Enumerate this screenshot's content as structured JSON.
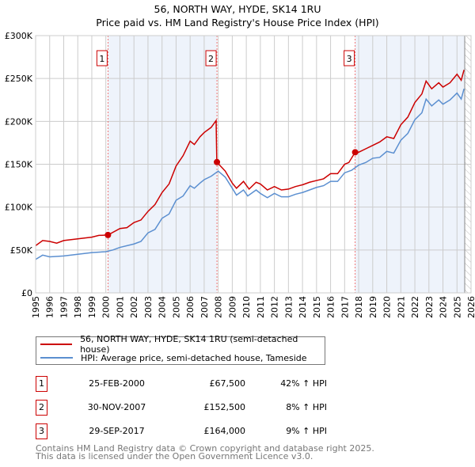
{
  "chart_data": {
    "type": "line",
    "title": "56, NORTH WAY, HYDE, SK14 1RU",
    "subtitle": "Price paid vs. HM Land Registry's House Price Index (HPI)",
    "xlim": [
      1995,
      2026
    ],
    "ylim": [
      0,
      300000
    ],
    "x_ticks": [
      "1995",
      "1996",
      "1997",
      "1998",
      "1999",
      "2000",
      "2001",
      "2002",
      "2003",
      "2004",
      "2005",
      "2006",
      "2007",
      "2008",
      "2009",
      "2010",
      "2011",
      "2012",
      "2013",
      "2014",
      "2015",
      "2016",
      "2017",
      "2018",
      "2019",
      "2020",
      "2021",
      "2022",
      "2023",
      "2024",
      "2025",
      "2026"
    ],
    "y_ticks": [
      {
        "v": 0,
        "label": "£0"
      },
      {
        "v": 50000,
        "label": "£50K"
      },
      {
        "v": 100000,
        "label": "£100K"
      },
      {
        "v": 150000,
        "label": "£150K"
      },
      {
        "v": 200000,
        "label": "£200K"
      },
      {
        "v": 250000,
        "label": "£250K"
      },
      {
        "v": 300000,
        "label": "£300K"
      }
    ],
    "grid": true,
    "colors": {
      "property": "#cc0000",
      "hpi": "#5b8fd0",
      "shade": "#eef3fb"
    },
    "series": [
      {
        "name": "56, NORTH WAY, HYDE, SK14 1RU (semi-detached house)",
        "color": "#cc0000",
        "points": [
          [
            1995,
            55
          ],
          [
            1995.5,
            61
          ],
          [
            1996,
            60
          ],
          [
            1996.5,
            58
          ],
          [
            1997,
            61
          ],
          [
            1998,
            63
          ],
          [
            1999,
            65
          ],
          [
            1999.5,
            67
          ],
          [
            2000.15,
            67.5
          ],
          [
            2001,
            75
          ],
          [
            2001.5,
            76
          ],
          [
            2002,
            82
          ],
          [
            2002.5,
            85
          ],
          [
            2003,
            95
          ],
          [
            2003.5,
            103
          ],
          [
            2004,
            117
          ],
          [
            2004.5,
            127
          ],
          [
            2005,
            148
          ],
          [
            2005.5,
            160
          ],
          [
            2006,
            177
          ],
          [
            2006.3,
            173
          ],
          [
            2006.7,
            182
          ],
          [
            2007,
            187
          ],
          [
            2007.5,
            193
          ],
          [
            2007.85,
            201
          ],
          [
            2007.9,
            152.5
          ],
          [
            2008.5,
            142
          ],
          [
            2009,
            128
          ],
          [
            2009.3,
            122
          ],
          [
            2009.8,
            130
          ],
          [
            2010.2,
            121
          ],
          [
            2010.7,
            129
          ],
          [
            2011,
            127
          ],
          [
            2011.5,
            120
          ],
          [
            2012,
            124
          ],
          [
            2012.5,
            120
          ],
          [
            2013,
            121
          ],
          [
            2013.5,
            124
          ],
          [
            2014,
            126
          ],
          [
            2014.5,
            129
          ],
          [
            2015,
            131
          ],
          [
            2015.5,
            133
          ],
          [
            2016,
            139
          ],
          [
            2016.5,
            139
          ],
          [
            2017,
            150
          ],
          [
            2017.3,
            152
          ],
          [
            2017.75,
            164
          ],
          [
            2018,
            164
          ],
          [
            2018.5,
            168
          ],
          [
            2019,
            172
          ],
          [
            2019.5,
            176
          ],
          [
            2020,
            182
          ],
          [
            2020.5,
            180
          ],
          [
            2021,
            196
          ],
          [
            2021.5,
            205
          ],
          [
            2022,
            222
          ],
          [
            2022.5,
            232
          ],
          [
            2022.8,
            247
          ],
          [
            2023.2,
            238
          ],
          [
            2023.7,
            245
          ],
          [
            2024,
            240
          ],
          [
            2024.5,
            245
          ],
          [
            2025,
            255
          ],
          [
            2025.3,
            248
          ],
          [
            2025.5,
            260
          ]
        ]
      },
      {
        "name": "HPI: Average price, semi-detached house, Tameside",
        "color": "#5b8fd0",
        "points": [
          [
            1995,
            39
          ],
          [
            1995.5,
            44
          ],
          [
            1996,
            42
          ],
          [
            1997,
            43
          ],
          [
            1998,
            45
          ],
          [
            1999,
            47
          ],
          [
            2000,
            48
          ],
          [
            2000.5,
            50
          ],
          [
            2001,
            53
          ],
          [
            2002,
            57
          ],
          [
            2002.5,
            60
          ],
          [
            2003,
            70
          ],
          [
            2003.5,
            74
          ],
          [
            2004,
            87
          ],
          [
            2004.5,
            92
          ],
          [
            2005,
            108
          ],
          [
            2005.5,
            113
          ],
          [
            2006,
            125
          ],
          [
            2006.3,
            122
          ],
          [
            2006.7,
            128
          ],
          [
            2007,
            132
          ],
          [
            2007.5,
            136
          ],
          [
            2008,
            142
          ],
          [
            2008.5,
            135
          ],
          [
            2009,
            122
          ],
          [
            2009.3,
            114
          ],
          [
            2009.8,
            120
          ],
          [
            2010.1,
            113
          ],
          [
            2010.7,
            120
          ],
          [
            2011,
            116
          ],
          [
            2011.5,
            111
          ],
          [
            2012,
            116
          ],
          [
            2012.5,
            112
          ],
          [
            2013,
            112
          ],
          [
            2013.5,
            115
          ],
          [
            2014,
            117
          ],
          [
            2014.5,
            120
          ],
          [
            2015,
            123
          ],
          [
            2015.5,
            125
          ],
          [
            2016,
            130
          ],
          [
            2016.5,
            130
          ],
          [
            2017,
            140
          ],
          [
            2017.5,
            143
          ],
          [
            2018,
            149
          ],
          [
            2018.5,
            152
          ],
          [
            2019,
            157
          ],
          [
            2019.5,
            158
          ],
          [
            2020,
            165
          ],
          [
            2020.5,
            163
          ],
          [
            2021,
            178
          ],
          [
            2021.5,
            186
          ],
          [
            2022,
            202
          ],
          [
            2022.5,
            210
          ],
          [
            2022.8,
            226
          ],
          [
            2023.2,
            218
          ],
          [
            2023.7,
            225
          ],
          [
            2024,
            220
          ],
          [
            2024.5,
            225
          ],
          [
            2025,
            233
          ],
          [
            2025.3,
            226
          ],
          [
            2025.5,
            238
          ]
        ]
      }
    ],
    "y_units": "thousands GBP",
    "data_end": 2025.55,
    "sales": [
      {
        "label": "1",
        "x": 2000.15,
        "price": 67.5,
        "date": "25-FEB-2000",
        "price_text": "£67,500",
        "hpi_text": "42% ↑ HPI"
      },
      {
        "label": "2",
        "x": 2007.91,
        "price": 152.5,
        "date": "30-NOV-2007",
        "price_text": "£152,500",
        "hpi_text": "8% ↑ HPI"
      },
      {
        "label": "3",
        "x": 2017.75,
        "price": 164,
        "date": "29-SEP-2017",
        "price_text": "£164,000",
        "hpi_text": "9% ↑ HPI"
      }
    ]
  },
  "footer": {
    "line1": "Contains HM Land Registry data © Crown copyright and database right 2025.",
    "line2": "This data is licensed under the Open Government Licence v3.0."
  }
}
